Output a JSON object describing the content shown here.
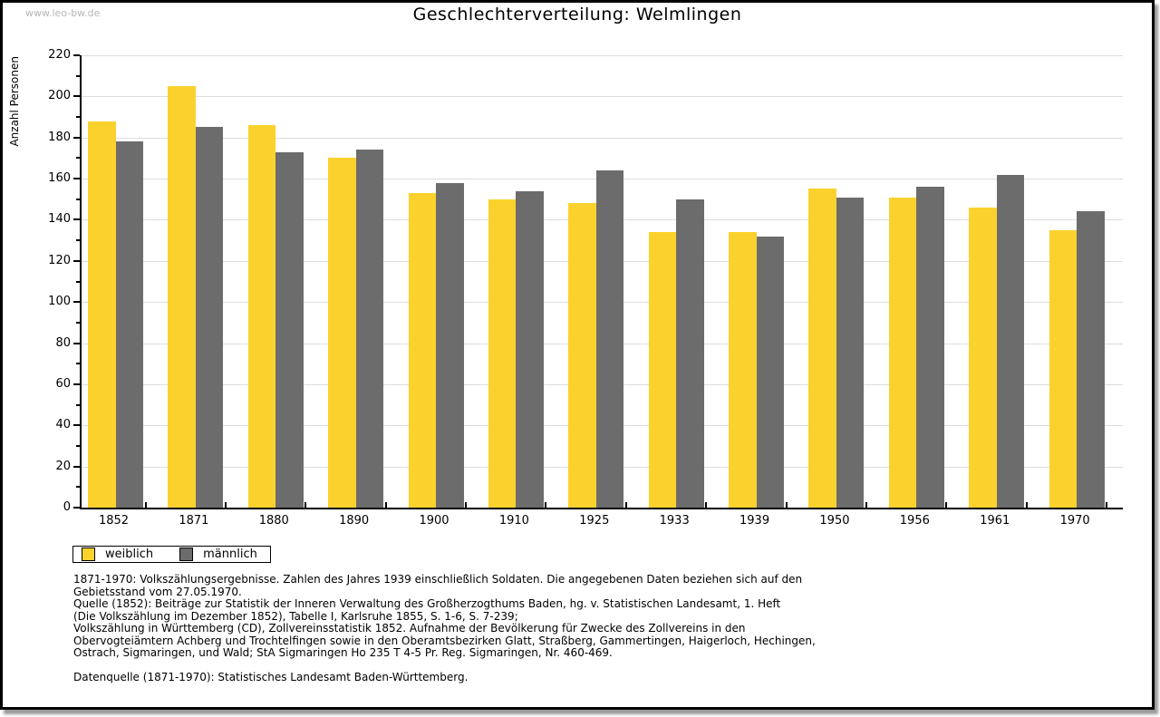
{
  "watermark": "www.leo-bw.de",
  "title": "Geschlechterverteilung: Welmlingen",
  "chart_data": {
    "type": "bar",
    "title": "Geschlechterverteilung: Welmlingen",
    "xlabel": "",
    "ylabel": "Anzahl Personen",
    "ylim": [
      0,
      220
    ],
    "ytick_major_step": 20,
    "ytick_minor_step": 10,
    "grid": true,
    "legend_position": "bottom-left",
    "categories": [
      "1852",
      "1871",
      "1880",
      "1890",
      "1900",
      "1910",
      "1925",
      "1933",
      "1939",
      "1950",
      "1956",
      "1961",
      "1970"
    ],
    "series": [
      {
        "name": "weiblich",
        "color": "#FBD22D",
        "values": [
          188,
          205,
          186,
          170,
          153,
          150,
          148,
          134,
          134,
          155,
          151,
          146,
          135
        ]
      },
      {
        "name": "männlich",
        "color": "#6C6C6C",
        "values": [
          178,
          185,
          173,
          174,
          158,
          154,
          164,
          150,
          132,
          151,
          156,
          162,
          144
        ]
      }
    ]
  },
  "legend": {
    "items": [
      {
        "label": "weiblich",
        "color": "#FBD22D"
      },
      {
        "label": "männlich",
        "color": "#6C6C6C"
      }
    ]
  },
  "footnotes": {
    "lines": [
      "1871-1970: Volkszählungsergebnisse. Zahlen des Jahres 1939 einschließlich Soldaten. Die angegebenen Daten beziehen sich auf den",
      "Gebietsstand vom 27.05.1970.",
      "Quelle (1852): Beiträge zur Statistik der Inneren Verwaltung des Großherzogthums Baden, hg. v. Statistischen Landesamt, 1. Heft",
      "(Die Volkszählung im Dezember 1852), Tabelle I, Karlsruhe 1855, S. 1-6, S. 7-239;",
      "Volkszählung in Württemberg (CD), Zollvereinsstatistik 1852. Aufnahme der Bevölkerung für Zwecke des Zollvereins in den",
      "Obervogteiämtern Achberg und Trochtelfingen sowie in den Oberamtsbezirken Glatt, Straßberg, Gammertingen, Haigerloch, Hechingen,",
      "Ostrach, Sigmaringen, und Wald; StA Sigmaringen Ho 235 T 4-5 Pr. Reg. Sigmaringen, Nr. 460-469."
    ],
    "datasource": "Datenquelle (1871-1970): Statistisches Landesamt Baden-Württemberg."
  },
  "colors": {
    "background": "#ffffff",
    "frame_border": "#000000",
    "gridline": "#dcdcdc",
    "watermark": "#b7b7b7",
    "bar_weiblich": "#FBD22D",
    "bar_maennlich": "#6C6C6C"
  }
}
